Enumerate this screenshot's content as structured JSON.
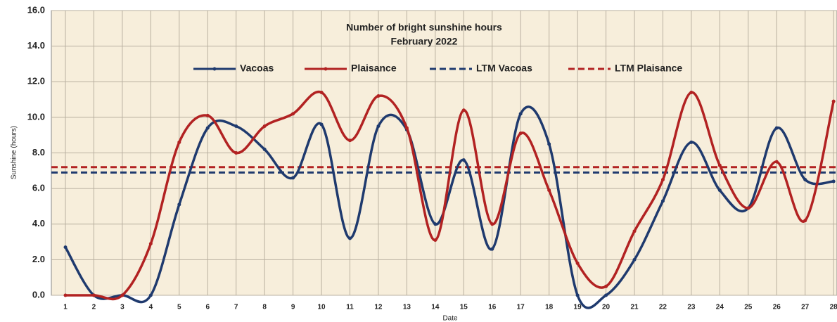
{
  "chart_data": {
    "type": "line",
    "title": "Number of bright sunshine hours",
    "subtitle": "February 2022",
    "x_label": "Date",
    "y_label": "Sunshine (hours)",
    "categories": [
      "1",
      "2",
      "3",
      "4",
      "5",
      "6",
      "7",
      "8",
      "9",
      "10",
      "11",
      "12",
      "13",
      "14",
      "15",
      "16",
      "17",
      "18",
      "19",
      "20",
      "21",
      "22",
      "23",
      "24",
      "25",
      "26",
      "27",
      "28"
    ],
    "series": [
      {
        "name": "Vacoas",
        "color": "#1f3a6e",
        "values": [
          2.7,
          0,
          0,
          0,
          5.1,
          9.4,
          9.5,
          8.2,
          6.6,
          9.6,
          3.2,
          9.5,
          9.3,
          4.0,
          7.6,
          2.6,
          10.2,
          8.5,
          0,
          0,
          2.0,
          5.3,
          8.6,
          5.9,
          4.9,
          9.4,
          6.5,
          6.4
        ]
      },
      {
        "name": "Plaisance",
        "color": "#b22222",
        "values": [
          0,
          0,
          0,
          2.9,
          8.6,
          10.1,
          8.0,
          9.5,
          10.2,
          11.4,
          8.7,
          11.2,
          9.4,
          3.1,
          10.4,
          4.0,
          9.1,
          5.9,
          1.8,
          0.5,
          3.6,
          6.5,
          11.4,
          7.3,
          4.9,
          7.5,
          4.2,
          10.9
        ]
      }
    ],
    "reference_lines": [
      {
        "name": "LTM Vacoas",
        "color": "#1f3a6e",
        "value": 6.9
      },
      {
        "name": "LTM Plaisance",
        "color": "#b22222",
        "value": 7.2
      }
    ],
    "ylim": [
      0,
      16
    ],
    "yticks": [
      {
        "value": 0,
        "label": "0.0"
      },
      {
        "value": 2,
        "label": "2.0"
      },
      {
        "value": 4,
        "label": "4.0"
      },
      {
        "value": 6,
        "label": "6.0"
      },
      {
        "value": 8,
        "label": "8.0"
      },
      {
        "value": 10,
        "label": "10.0"
      },
      {
        "value": 12,
        "label": "12.0"
      },
      {
        "value": 14,
        "label": "14.0"
      },
      {
        "value": 16,
        "label": "16.0"
      }
    ],
    "grid": true,
    "background": "#f7eedb"
  }
}
